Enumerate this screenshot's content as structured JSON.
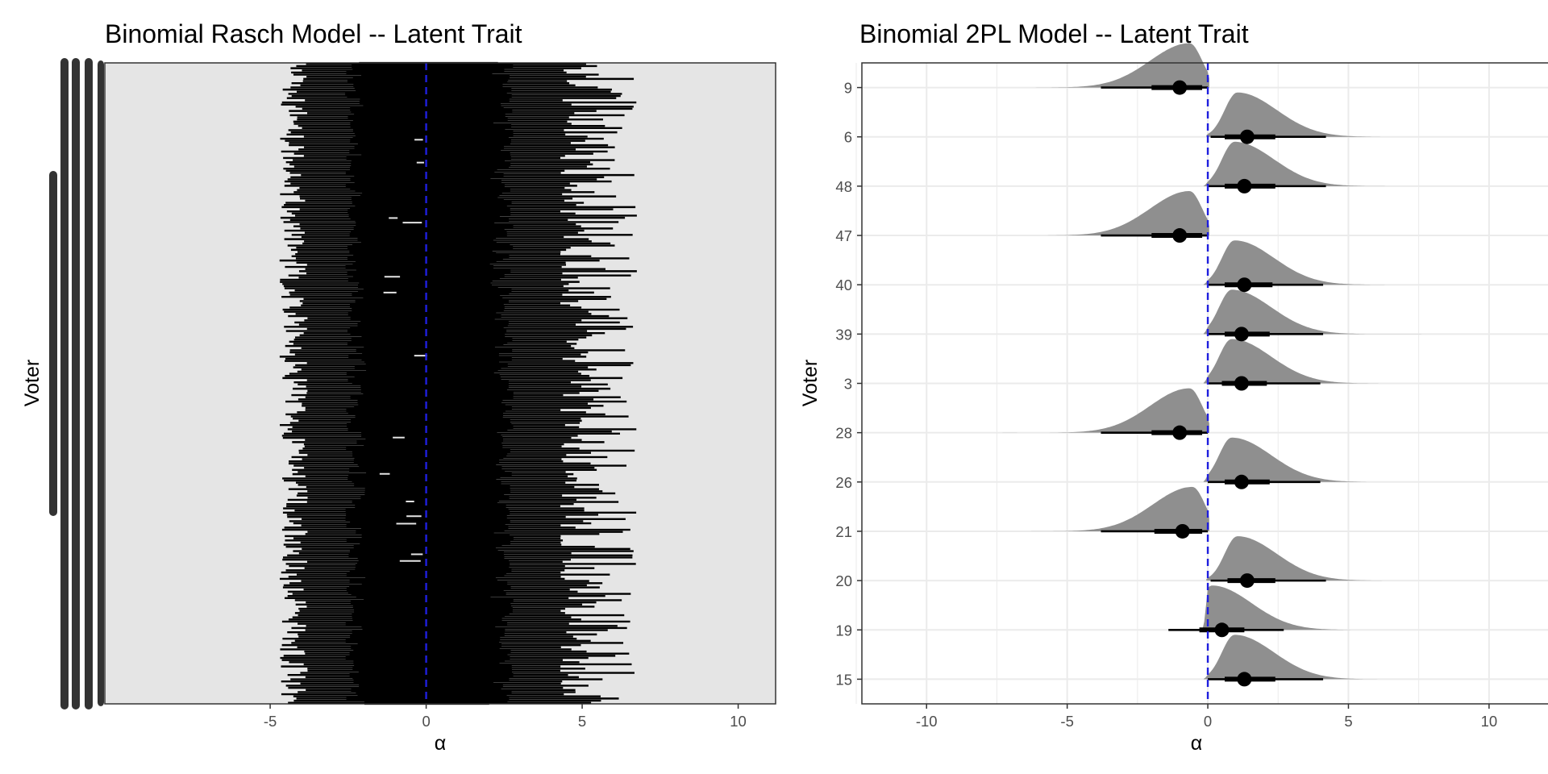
{
  "chart_data": [
    {
      "type": "interval",
      "title": "Binomial Rasch Model -- Latent Trait",
      "xlabel": "α",
      "ylabel": "Voter",
      "xlim": [
        -10.3,
        11.2
      ],
      "x_ticks": [
        -5,
        0,
        5,
        10
      ],
      "x_tick_labels": [
        "-5",
        "0",
        "5",
        "10"
      ],
      "reference_line": {
        "x": 0,
        "style": "dashed",
        "color": "#1f1fdd"
      },
      "background": "#e5e5e5",
      "grid": false,
      "y_tick_labels": "illegible (overplotted)",
      "n_voters_approx": 300,
      "interval_summary": {
        "outer_lower_range": [
          -4.7,
          -3.8
        ],
        "outer_upper_range": [
          4.3,
          6.8
        ],
        "inner_lower_range": [
          -2.6,
          -1.8
        ],
        "inner_upper_range": [
          2.0,
          2.8
        ]
      }
    },
    {
      "type": "density_interval",
      "title": "Binomial 2PL Model -- Latent Trait",
      "xlabel": "α",
      "ylabel": "Voter",
      "xlim": [
        -12.3,
        13.3
      ],
      "x_ticks": [
        -10,
        -5,
        0,
        5,
        10
      ],
      "x_tick_labels": [
        "-10",
        "-5",
        "0",
        "5",
        "10"
      ],
      "reference_line": {
        "x": 0,
        "style": "dashed",
        "color": "#1f1fdd"
      },
      "background": "#ffffff",
      "grid": true,
      "categories": [
        "15",
        "19",
        "20",
        "21",
        "26",
        "28",
        "3",
        "39",
        "40",
        "47",
        "48",
        "6",
        "9"
      ],
      "series": [
        {
          "name": "15",
          "point": 1.3,
          "inner": [
            0.6,
            2.4
          ],
          "outer": [
            0.0,
            4.1
          ]
        },
        {
          "name": "19",
          "point": 0.5,
          "inner": [
            -0.3,
            1.3
          ],
          "outer": [
            -1.4,
            2.7
          ]
        },
        {
          "name": "20",
          "point": 1.4,
          "inner": [
            0.7,
            2.4
          ],
          "outer": [
            0.1,
            4.2
          ]
        },
        {
          "name": "21",
          "point": -0.9,
          "inner": [
            -1.9,
            -0.2
          ],
          "outer": [
            -3.8,
            0.0
          ]
        },
        {
          "name": "26",
          "point": 1.2,
          "inner": [
            0.6,
            2.2
          ],
          "outer": [
            0.0,
            4.0
          ]
        },
        {
          "name": "28",
          "point": -1.0,
          "inner": [
            -2.0,
            -0.2
          ],
          "outer": [
            -3.8,
            0.0
          ]
        },
        {
          "name": "3",
          "point": 1.2,
          "inner": [
            0.5,
            2.1
          ],
          "outer": [
            0.0,
            4.0
          ]
        },
        {
          "name": "39",
          "point": 1.2,
          "inner": [
            0.6,
            2.2
          ],
          "outer": [
            0.0,
            4.1
          ]
        },
        {
          "name": "40",
          "point": 1.3,
          "inner": [
            0.6,
            2.3
          ],
          "outer": [
            0.0,
            4.1
          ]
        },
        {
          "name": "47",
          "point": -1.0,
          "inner": [
            -2.0,
            -0.2
          ],
          "outer": [
            -3.8,
            0.0
          ]
        },
        {
          "name": "48",
          "point": 1.3,
          "inner": [
            0.6,
            2.4
          ],
          "outer": [
            0.0,
            4.2
          ]
        },
        {
          "name": "6",
          "point": 1.4,
          "inner": [
            0.6,
            2.4
          ],
          "outer": [
            0.1,
            4.2
          ]
        },
        {
          "name": "9",
          "point": -1.0,
          "inner": [
            -2.0,
            -0.2
          ],
          "outer": [
            -3.8,
            0.0
          ]
        }
      ]
    }
  ]
}
